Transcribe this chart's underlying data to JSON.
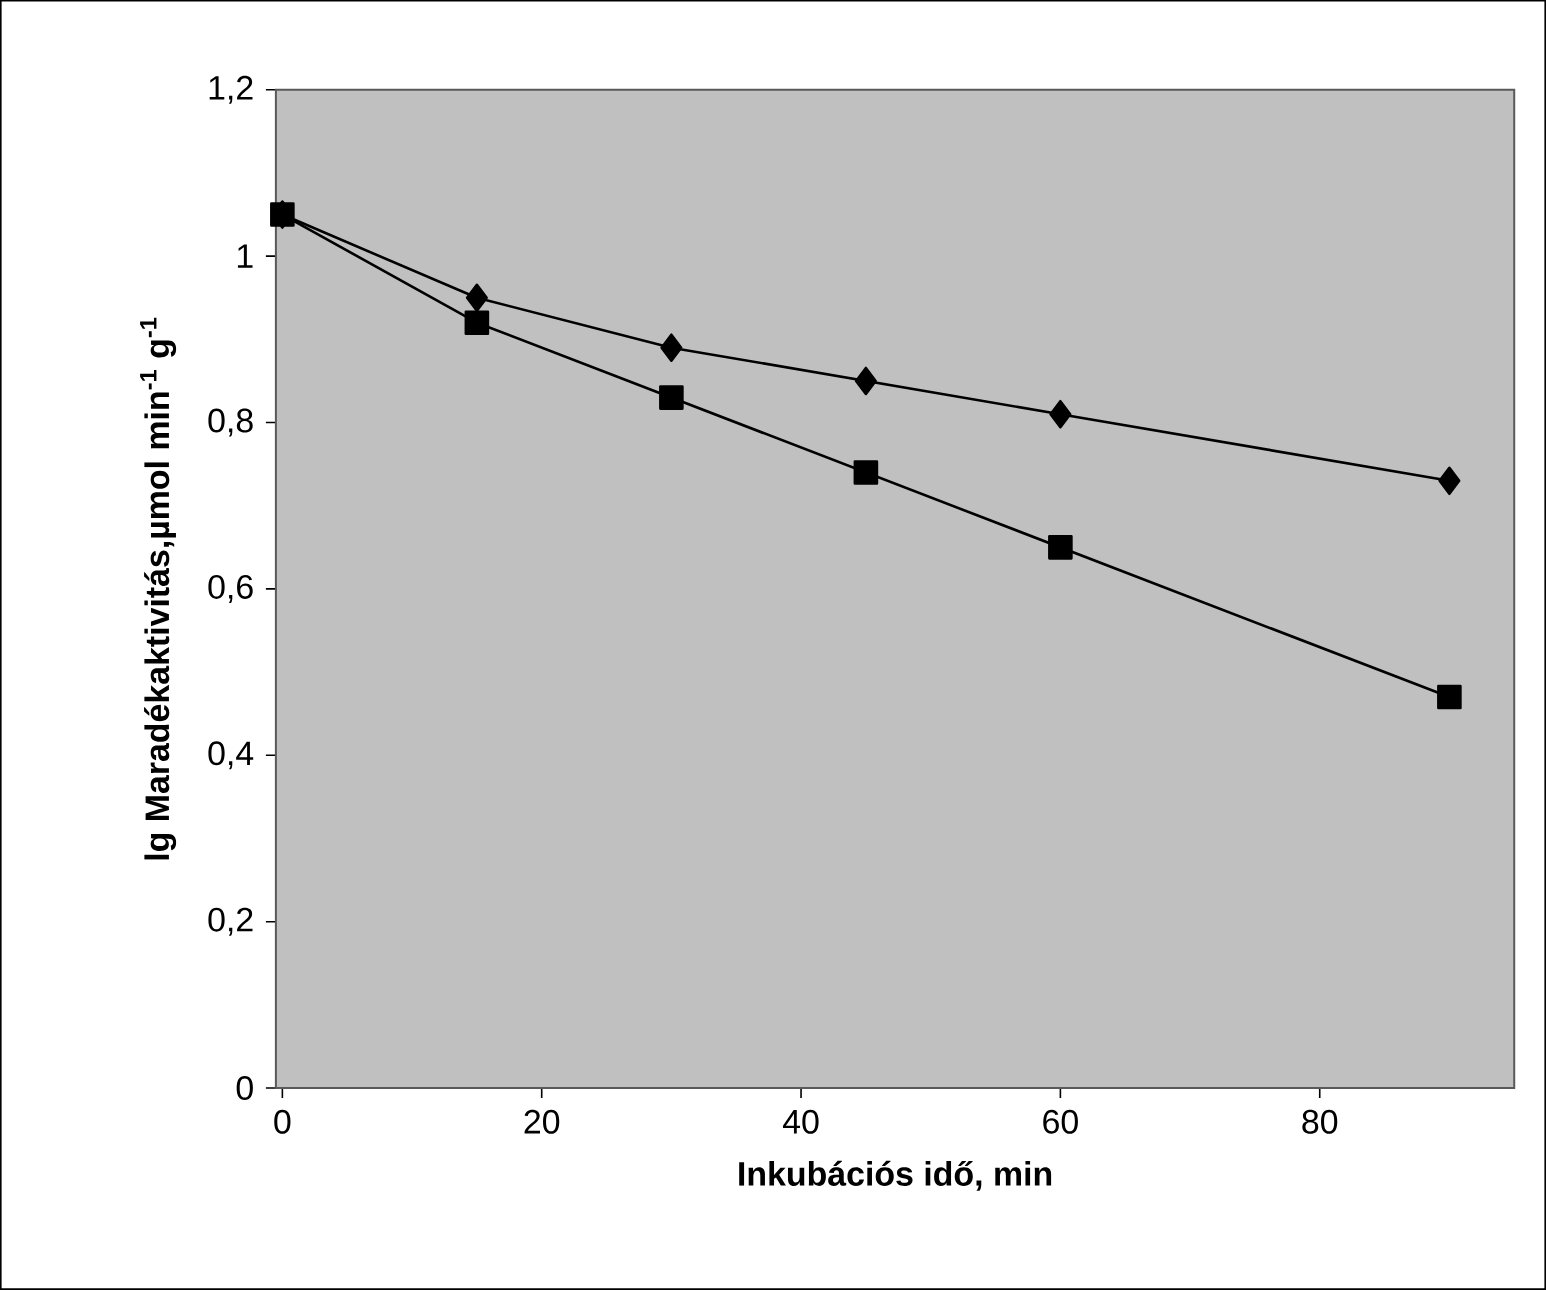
{
  "chart_data": {
    "type": "line",
    "xlabel": "Inkubációs idő, min",
    "ylabel": "lg Maradékaktivitás,µmol min$^{-1}$ g$^{-1}$",
    "x": [
      0,
      15,
      30,
      45,
      60,
      90
    ],
    "xlim": [
      -0.5,
      95
    ],
    "xticks": [
      0,
      20,
      40,
      60,
      80
    ],
    "ylim": [
      0,
      1.2
    ],
    "yticks": [
      {
        "value": 0,
        "label": "0"
      },
      {
        "value": 0.2,
        "label": "0,2"
      },
      {
        "value": 0.4,
        "label": "0,4"
      },
      {
        "value": 0.6,
        "label": "0,6"
      },
      {
        "value": 0.8,
        "label": "0,8"
      },
      {
        "value": 1,
        "label": "1"
      },
      {
        "value": 1.2,
        "label": "1,2"
      }
    ],
    "line_style": "solid",
    "series": [
      {
        "color": "#000000",
        "marker": "diamond",
        "values": [
          1.05,
          0.95,
          0.89,
          0.85,
          0.81,
          0.73
        ]
      },
      {
        "color": "#000000",
        "marker": "square",
        "values": [
          1.05,
          0.92,
          0.83,
          0.74,
          0.65,
          0.47
        ]
      }
    ]
  }
}
